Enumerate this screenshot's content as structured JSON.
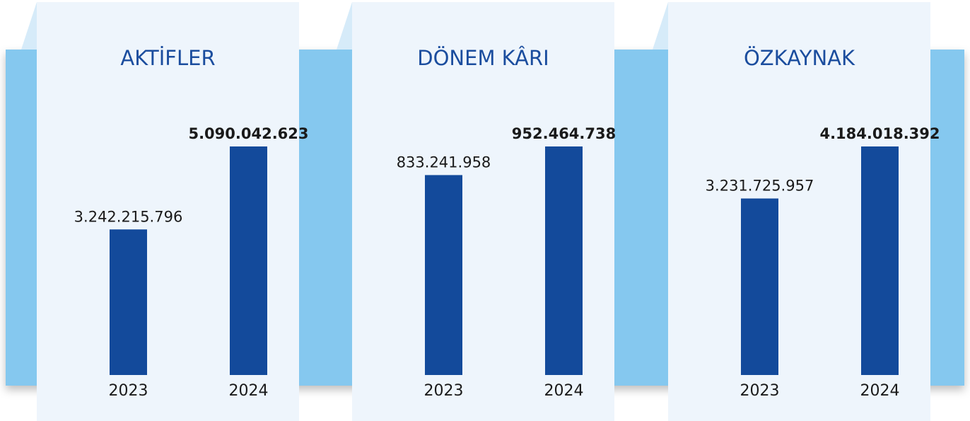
{
  "chart_data": [
    {
      "type": "bar",
      "title": "AKTİFLER",
      "categories": [
        "2023",
        "2024"
      ],
      "values": [
        3242215796,
        5090042623
      ],
      "value_labels": [
        "3.242.215.796",
        "5.090.042.623"
      ],
      "color": "#134a9b"
    },
    {
      "type": "bar",
      "title": "DÖNEM KÂRI",
      "categories": [
        "2023",
        "2024"
      ],
      "values": [
        833241958,
        952464738
      ],
      "value_labels": [
        "833.241.958",
        "952.464.738"
      ],
      "color": "#134a9b"
    },
    {
      "type": "bar",
      "title": "ÖZKAYNAK",
      "categories": [
        "2023",
        "2024"
      ],
      "values": [
        3231725957,
        4184018392
      ],
      "value_labels": [
        "3.231.725.957",
        "4.184.018.392"
      ],
      "color": "#134a9b"
    }
  ]
}
